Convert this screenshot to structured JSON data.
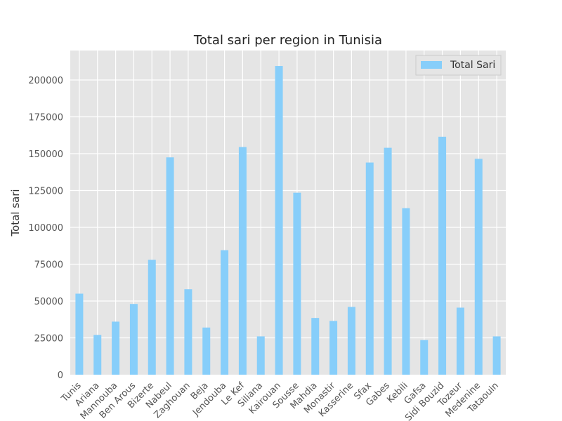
{
  "chart_data": {
    "type": "bar",
    "title": "Total sari per region in Tunisia",
    "xlabel": "",
    "ylabel": "Total sari",
    "ylim": [
      0,
      220000
    ],
    "yticks": [
      0,
      25000,
      50000,
      75000,
      100000,
      125000,
      150000,
      175000,
      200000
    ],
    "ytick_labels": [
      "0",
      "25000",
      "50000",
      "75000",
      "100000",
      "125000",
      "150000",
      "175000",
      "200000"
    ],
    "grid": true,
    "legend": {
      "position": "top-right",
      "entries": [
        "Total Sari"
      ]
    },
    "categories": [
      "Tunis",
      "Ariana",
      "Mannouba",
      "Ben Arous",
      "Bizerte",
      "Nabeul",
      "Zaghouan",
      "Beja",
      "Jendouba",
      "Le Kef",
      "Siliana",
      "Kairouan",
      "Sousse",
      "Mahdia",
      "Monastir",
      "Kasserine",
      "Sfax",
      "Gabes",
      "Kebili",
      "Gafsa",
      "Sidi Bouzid",
      "Tozeur",
      "Medenine",
      "Tataouin"
    ],
    "series": [
      {
        "name": "Total Sari",
        "color": "#87cefa",
        "values": [
          55000,
          27000,
          36000,
          48000,
          78000,
          147500,
          58000,
          32000,
          84500,
          154500,
          26000,
          209500,
          123500,
          38500,
          36500,
          46000,
          144000,
          154000,
          113000,
          23500,
          161500,
          45500,
          146500,
          26000
        ]
      }
    ],
    "colors": {
      "plot_background": "#e5e5e5",
      "grid": "#ffffff",
      "bar": "#87cefa"
    }
  }
}
